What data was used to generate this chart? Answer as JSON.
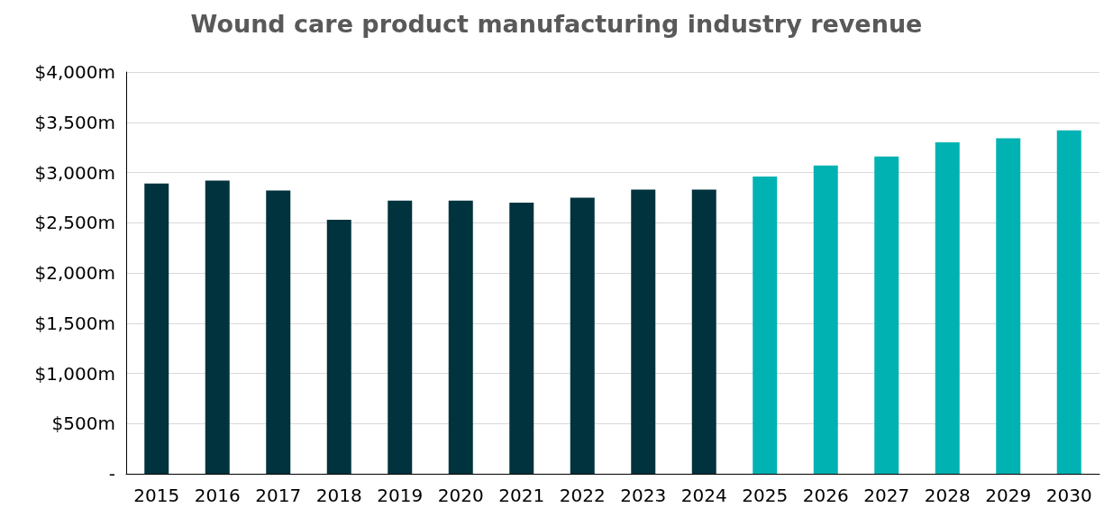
{
  "chart_data": {
    "type": "bar",
    "title": "Wound care product manufacturing industry revenue",
    "categories": [
      "2015",
      "2016",
      "2017",
      "2018",
      "2019",
      "2020",
      "2021",
      "2022",
      "2023",
      "2024",
      "2025",
      "2026",
      "2027",
      "2028",
      "2029",
      "2030"
    ],
    "values": [
      2890,
      2920,
      2820,
      2530,
      2720,
      2720,
      2700,
      2750,
      2830,
      2830,
      2960,
      3070,
      3160,
      3300,
      3340,
      3420
    ],
    "colors": [
      "#00333d",
      "#00333d",
      "#00333d",
      "#00333d",
      "#00333d",
      "#00333d",
      "#00333d",
      "#00333d",
      "#00333d",
      "#00333d",
      "#00b2b2",
      "#00b2b2",
      "#00b2b2",
      "#00b2b2",
      "#00b2b2",
      "#00b2b2"
    ],
    "ylim": [
      0,
      4000
    ],
    "yticks": [
      {
        "value": 0,
        "label": "-"
      },
      {
        "value": 500,
        "label": "$500m"
      },
      {
        "value": 1000,
        "label": "$1,000m"
      },
      {
        "value": 1500,
        "label": "$1,500m"
      },
      {
        "value": 2000,
        "label": "$2,000m"
      },
      {
        "value": 2500,
        "label": "$2,500m"
      },
      {
        "value": 3000,
        "label": "$3,000m"
      },
      {
        "value": 3500,
        "label": "$3,500m"
      },
      {
        "value": 4000,
        "label": "$4,000m"
      }
    ],
    "grid": "y"
  }
}
